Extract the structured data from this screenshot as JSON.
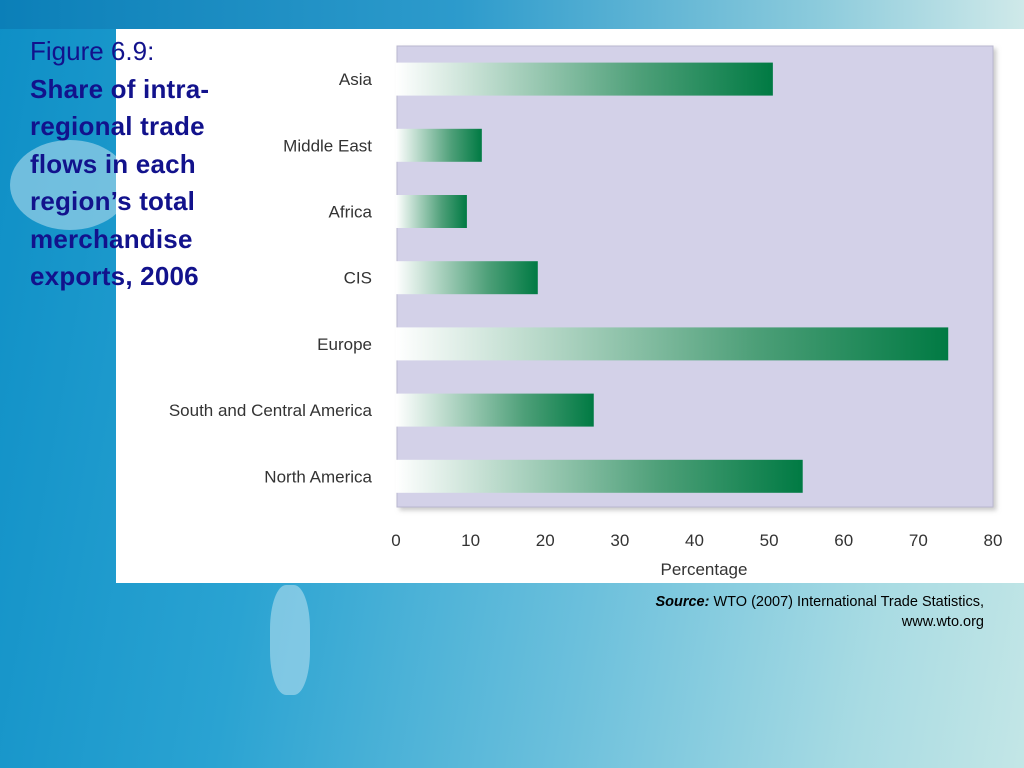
{
  "slide": {
    "figure_label": "Figure 6.9:",
    "title": "Share of intra-regional trade flows in each region’s total merchandise exports, 2006",
    "source_label": "Source:",
    "source_text": "WTO (2007) International Trade Statistics, www.wto.org"
  },
  "colors": {
    "plot_background": "#d3d1e8",
    "bar_dark": "#007a43",
    "bar_light": "#ffffff",
    "title_color": "#12128c"
  },
  "chart_data": {
    "type": "bar",
    "orientation": "horizontal",
    "categories": [
      "Asia",
      "Middle East",
      "Africa",
      "CIS",
      "Europe",
      "South and Central America",
      "North America"
    ],
    "values": [
      50.5,
      11.5,
      9.5,
      19,
      74,
      26.5,
      54.5
    ],
    "xlabel": "Percentage",
    "ylabel": "",
    "xlim": [
      0,
      80
    ],
    "xticks": [
      0,
      10,
      20,
      30,
      40,
      50,
      60,
      70,
      80
    ],
    "grid": false,
    "legend": "none"
  }
}
